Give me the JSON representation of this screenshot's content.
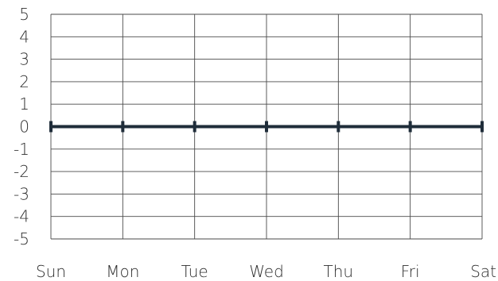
{
  "chart_data": {
    "type": "line",
    "categories": [
      "Sun",
      "Mon",
      "Tue",
      "Wed",
      "Thu",
      "Fri",
      "Sat"
    ],
    "series": [
      {
        "values": [
          0,
          0,
          0,
          0,
          0,
          0,
          0
        ],
        "color": "#1f2d3a",
        "marker": "vertical-tick"
      }
    ],
    "ylim": [
      -5,
      5
    ],
    "yticks": [
      "5",
      "4",
      "3",
      "2",
      "1",
      "0",
      "-1",
      "-2",
      "-3",
      "-4",
      "-5"
    ],
    "grid": true,
    "legend": false,
    "title": "",
    "xlabel": "",
    "ylabel": "",
    "colors": {
      "grid": "#4a4a4a",
      "text": "#2d2d2d",
      "series": "#1f2d3a"
    }
  }
}
